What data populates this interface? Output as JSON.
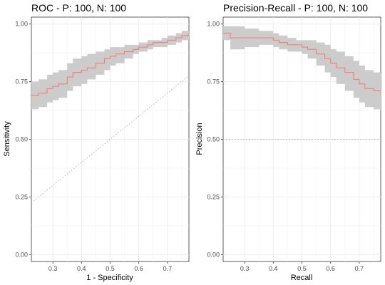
{
  "chart_data": [
    {
      "type": "line",
      "title": "ROC - P: 100, N: 100",
      "xlabel": "1 - Specificity",
      "ylabel": "Sensitivity",
      "xlim": [
        0.225,
        0.775
      ],
      "ylim": [
        -0.03,
        1.03
      ],
      "x_ticks": [
        0.3,
        0.4,
        0.5,
        0.6,
        0.7
      ],
      "y_ticks": [
        0.0,
        0.25,
        0.5,
        0.75,
        1.0
      ],
      "x_tick_labels": [
        "0.3",
        "0.4",
        "0.5",
        "0.6",
        "0.7"
      ],
      "y_tick_labels": [
        "0.00",
        "0.25",
        "0.50",
        "0.75",
        "1.00"
      ],
      "grid": true,
      "reference_line": {
        "type": "diagonal",
        "from": [
          0.0,
          0.0
        ],
        "to": [
          1.0,
          1.0
        ],
        "style": "dotted",
        "color": "#b3b3b3"
      },
      "series": [
        {
          "color": "#f8766d",
          "band_color": "#cccccc",
          "x": [
            0.225,
            0.25,
            0.28,
            0.3,
            0.32,
            0.35,
            0.37,
            0.4,
            0.42,
            0.45,
            0.48,
            0.5,
            0.52,
            0.55,
            0.58,
            0.6,
            0.63,
            0.65,
            0.68,
            0.7,
            0.73,
            0.75,
            0.775
          ],
          "y": [
            0.69,
            0.7,
            0.72,
            0.73,
            0.74,
            0.77,
            0.79,
            0.8,
            0.81,
            0.83,
            0.85,
            0.86,
            0.87,
            0.88,
            0.89,
            0.9,
            0.91,
            0.92,
            0.92,
            0.93,
            0.94,
            0.95,
            0.96
          ],
          "lower": [
            0.63,
            0.64,
            0.66,
            0.67,
            0.68,
            0.71,
            0.73,
            0.74,
            0.76,
            0.78,
            0.8,
            0.82,
            0.83,
            0.85,
            0.87,
            0.88,
            0.89,
            0.9,
            0.9,
            0.91,
            0.92,
            0.93,
            0.94
          ],
          "upper": [
            0.75,
            0.76,
            0.78,
            0.79,
            0.8,
            0.83,
            0.85,
            0.86,
            0.87,
            0.88,
            0.89,
            0.9,
            0.9,
            0.91,
            0.91,
            0.92,
            0.93,
            0.93,
            0.94,
            0.95,
            0.96,
            0.97,
            0.98
          ]
        }
      ]
    },
    {
      "type": "line",
      "title": "Precision-Recall - P: 100, N: 100",
      "xlabel": "Recall",
      "ylabel": "Precision",
      "xlim": [
        0.225,
        0.775
      ],
      "ylim": [
        -0.03,
        1.03
      ],
      "x_ticks": [
        0.3,
        0.4,
        0.5,
        0.6,
        0.7
      ],
      "y_ticks": [
        0.0,
        0.25,
        0.5,
        0.75,
        1.0
      ],
      "x_tick_labels": [
        "0.3",
        "0.4",
        "0.5",
        "0.6",
        "0.7"
      ],
      "y_tick_labels": [
        "0.00",
        "0.25",
        "0.50",
        "0.75",
        "1.00"
      ],
      "grid": true,
      "reference_line": {
        "type": "horizontal",
        "y": 0.5,
        "style": "dotted",
        "color": "#b3b3b3"
      },
      "series": [
        {
          "color": "#f8766d",
          "band_color": "#cccccc",
          "x": [
            0.225,
            0.24,
            0.25,
            0.3,
            0.35,
            0.4,
            0.42,
            0.45,
            0.48,
            0.5,
            0.52,
            0.55,
            0.58,
            0.6,
            0.62,
            0.65,
            0.68,
            0.7,
            0.72,
            0.75,
            0.775
          ],
          "y": [
            0.96,
            0.96,
            0.94,
            0.94,
            0.94,
            0.93,
            0.92,
            0.91,
            0.91,
            0.9,
            0.89,
            0.87,
            0.85,
            0.83,
            0.81,
            0.79,
            0.76,
            0.74,
            0.72,
            0.71,
            0.69
          ],
          "lower": [
            0.93,
            0.93,
            0.89,
            0.9,
            0.91,
            0.9,
            0.89,
            0.88,
            0.88,
            0.87,
            0.85,
            0.82,
            0.79,
            0.77,
            0.74,
            0.71,
            0.68,
            0.66,
            0.64,
            0.63,
            0.62
          ],
          "upper": [
            0.99,
            0.99,
            0.99,
            0.98,
            0.97,
            0.96,
            0.95,
            0.94,
            0.93,
            0.93,
            0.93,
            0.92,
            0.91,
            0.89,
            0.88,
            0.86,
            0.84,
            0.82,
            0.8,
            0.79,
            0.77
          ]
        }
      ]
    }
  ]
}
